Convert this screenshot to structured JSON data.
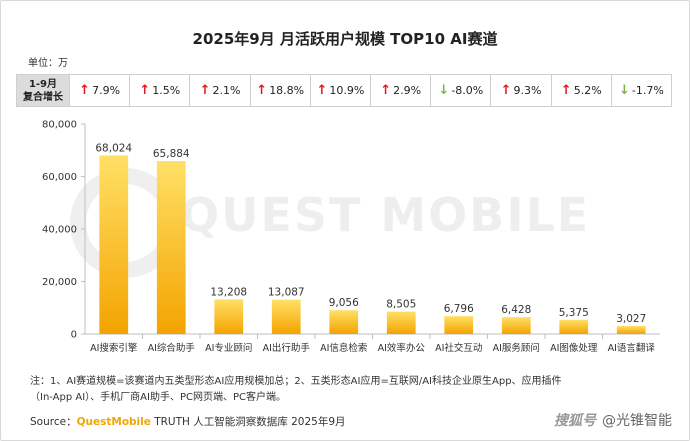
{
  "title": "2025年9月 月活跃用户规模 TOP10 AI赛道",
  "unit_label": "单位：万",
  "growth": {
    "label_line1": "1-9月",
    "label_line2": "复合增长",
    "items": [
      {
        "dir": "up",
        "value": "7.9%"
      },
      {
        "dir": "up",
        "value": "1.5%"
      },
      {
        "dir": "up",
        "value": "2.1%"
      },
      {
        "dir": "up",
        "value": "18.8%"
      },
      {
        "dir": "up",
        "value": "10.9%"
      },
      {
        "dir": "up",
        "value": "2.9%"
      },
      {
        "dir": "down",
        "value": "-8.0%"
      },
      {
        "dir": "up",
        "value": "9.3%"
      },
      {
        "dir": "up",
        "value": "5.2%"
      },
      {
        "dir": "down",
        "value": "-1.7%"
      }
    ]
  },
  "chart_data": {
    "type": "bar",
    "categories": [
      "AI搜索引擎",
      "AI综合助手",
      "AI专业顾问",
      "AI出行助手",
      "AI信息检索",
      "AI效率办公",
      "AI社交互动",
      "AI服务顾问",
      "AI图像处理",
      "AI语言翻译"
    ],
    "values": [
      68024,
      65884,
      13208,
      13087,
      9056,
      8505,
      6796,
      6428,
      5375,
      3027
    ],
    "value_labels": [
      "68,024",
      "65,884",
      "13,208",
      "13,087",
      "9,056",
      "8,505",
      "6,796",
      "6,428",
      "5,375",
      "3,027"
    ],
    "yticks": [
      0,
      20000,
      40000,
      60000,
      80000
    ],
    "ytick_labels": [
      "0",
      "20,000",
      "40,000",
      "60,000",
      "80,000"
    ],
    "ylim": [
      0,
      80000
    ],
    "grid": false,
    "bar_color_top": "#ffe066",
    "bar_color_bottom": "#f4a300"
  },
  "watermark": "QUEST MOBILE",
  "note": {
    "line1": "注：1、AI赛道规模=该赛道内五类型形态AI应用规模加总；2、五类形态AI应用=互联网/AI科技企业原生App、应用插件",
    "line2": "（In-App AI）、手机厂商AI助手、PC网页端、PC客户端。"
  },
  "source": {
    "prefix": "Source：",
    "brand": "QuestMobile",
    "rest": " TRUTH 人工智能洞察数据库 2025年9月"
  },
  "stamp": {
    "mark": "搜狐号",
    "account": "@光锥智能"
  }
}
